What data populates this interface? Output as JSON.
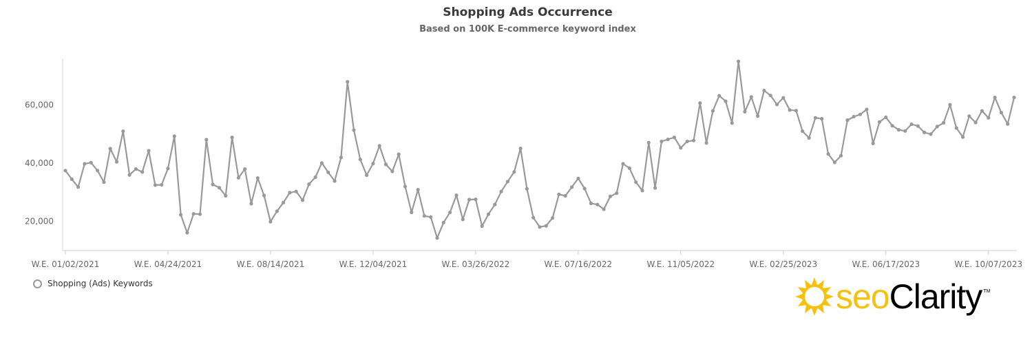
{
  "header": {
    "title": "Shopping Ads Occurrence",
    "subtitle": "Based on 100K E-commerce keyword index"
  },
  "legend": {
    "label": "Shopping (Ads) Keywords"
  },
  "logo": {
    "seo": "seo",
    "clarity": "Clarity",
    "tm": "TM",
    "colors": {
      "seo": "#f4c20d",
      "clarity": "#000000"
    }
  },
  "chart_data": {
    "type": "line",
    "title": "Shopping Ads Occurrence",
    "subtitle": "Based on 100K E-commerce keyword index",
    "xlabel": "",
    "ylabel": "",
    "x_start": "W.E. 01/02/2021",
    "x_interval": "weekly",
    "x_tick_labels": [
      "W.E. 01/02/2021",
      "W.E. 04/24/2021",
      "W.E. 08/14/2021",
      "W.E. 12/04/2021",
      "W.E. 03/26/2022",
      "W.E. 07/16/2022",
      "W.E. 11/05/2022",
      "W.E. 02/25/2023",
      "W.E. 06/17/2023",
      "W.E. 10/07/2023"
    ],
    "x_tick_indices": [
      0,
      16,
      32,
      48,
      64,
      80,
      96,
      112,
      128,
      144
    ],
    "y_ticks": [
      20000,
      40000,
      60000
    ],
    "y_tick_labels": [
      "20,000",
      "40,000",
      "60,000"
    ],
    "ylim": [
      10000,
      76000
    ],
    "grid": false,
    "legend_position": "bottom-left",
    "series": [
      {
        "name": "Shopping (Ads) Keywords",
        "color": "#999999",
        "values": [
          37500,
          34500,
          31800,
          39800,
          40200,
          37500,
          33500,
          45000,
          40500,
          51000,
          36000,
          38000,
          37000,
          44300,
          32500,
          32600,
          38200,
          49300,
          22300,
          16100,
          22600,
          22500,
          48100,
          32700,
          31600,
          28800,
          48900,
          35000,
          38000,
          26100,
          34900,
          28900,
          19900,
          23500,
          26500,
          29900,
          30300,
          27300,
          32800,
          35200,
          40100,
          36900,
          33900,
          42000,
          68000,
          51400,
          41300,
          35900,
          39900,
          46000,
          39600,
          37200,
          43100,
          32000,
          23100,
          30900,
          21900,
          21500,
          14300,
          19600,
          23100,
          29000,
          20700,
          27500,
          27600,
          18400,
          22500,
          25800,
          30300,
          33700,
          37000,
          45100,
          31200,
          21300,
          18100,
          18500,
          21200,
          29300,
          28800,
          31800,
          34800,
          31300,
          26200,
          25800,
          24200,
          28600,
          29700,
          39800,
          38300,
          33500,
          30600,
          47100,
          31500,
          47500,
          48200,
          48900,
          45300,
          47500,
          47800,
          60700,
          47000,
          58000,
          63200,
          61300,
          53800,
          75000,
          57700,
          62800,
          56200,
          65000,
          63300,
          60200,
          62500,
          58300,
          58100,
          51000,
          48700,
          55600,
          55300,
          43200,
          40300,
          42600,
          54800,
          56000,
          56800,
          58500,
          46800,
          54200,
          55800,
          52900,
          51500,
          51100,
          53400,
          52800,
          50600,
          50000,
          52600,
          53900,
          60100,
          52100,
          49000,
          56200,
          54000,
          58000,
          55600,
          62600,
          57400,
          53500,
          62600
        ]
      }
    ]
  }
}
